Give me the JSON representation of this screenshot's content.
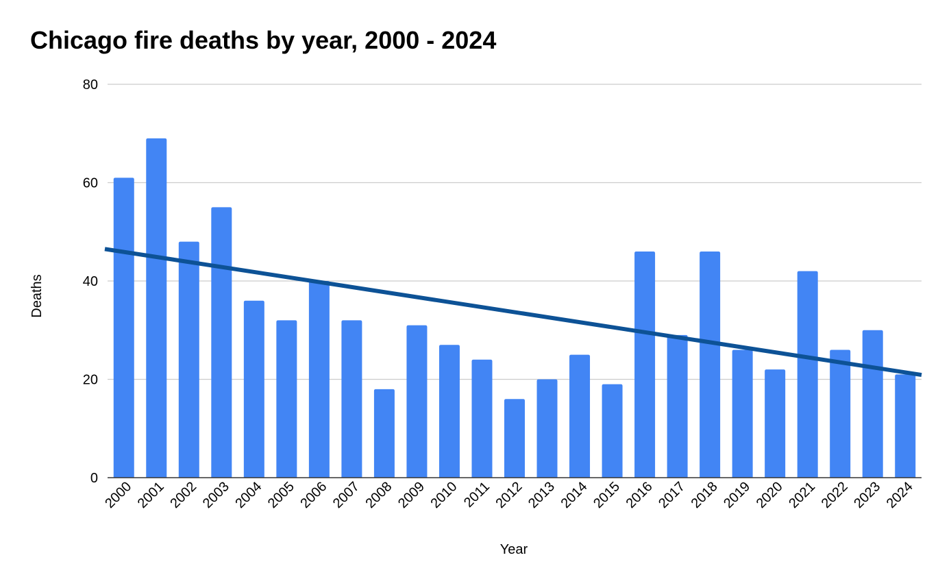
{
  "chart_data": {
    "type": "bar",
    "title": "Chicago fire deaths by year, 2000 - 2024",
    "xlabel": "Year",
    "ylabel": "Deaths",
    "ylim": [
      0,
      80
    ],
    "yticks": [
      "0",
      "20",
      "40",
      "60",
      "80"
    ],
    "grid": true,
    "legend": "none",
    "categories": [
      "2000",
      "2001",
      "2002",
      "2003",
      "2004",
      "2005",
      "2006",
      "2007",
      "2008",
      "2009",
      "2010",
      "2011",
      "2012",
      "2013",
      "2014",
      "2015",
      "2016",
      "2017",
      "2018",
      "2019",
      "2020",
      "2021",
      "2022",
      "2023",
      "2024"
    ],
    "values": [
      61,
      69,
      48,
      55,
      36,
      32,
      40,
      32,
      18,
      31,
      27,
      24,
      16,
      20,
      25,
      19,
      46,
      29,
      46,
      26,
      22,
      42,
      26,
      30,
      21
    ],
    "trendline": {
      "type": "linear",
      "start_value": 46.5,
      "end_value": 20.9
    },
    "colors": {
      "bar": "#4285f4",
      "trendline": "#0d5296",
      "grid": "#cccccc",
      "baseline": "#333333"
    }
  }
}
